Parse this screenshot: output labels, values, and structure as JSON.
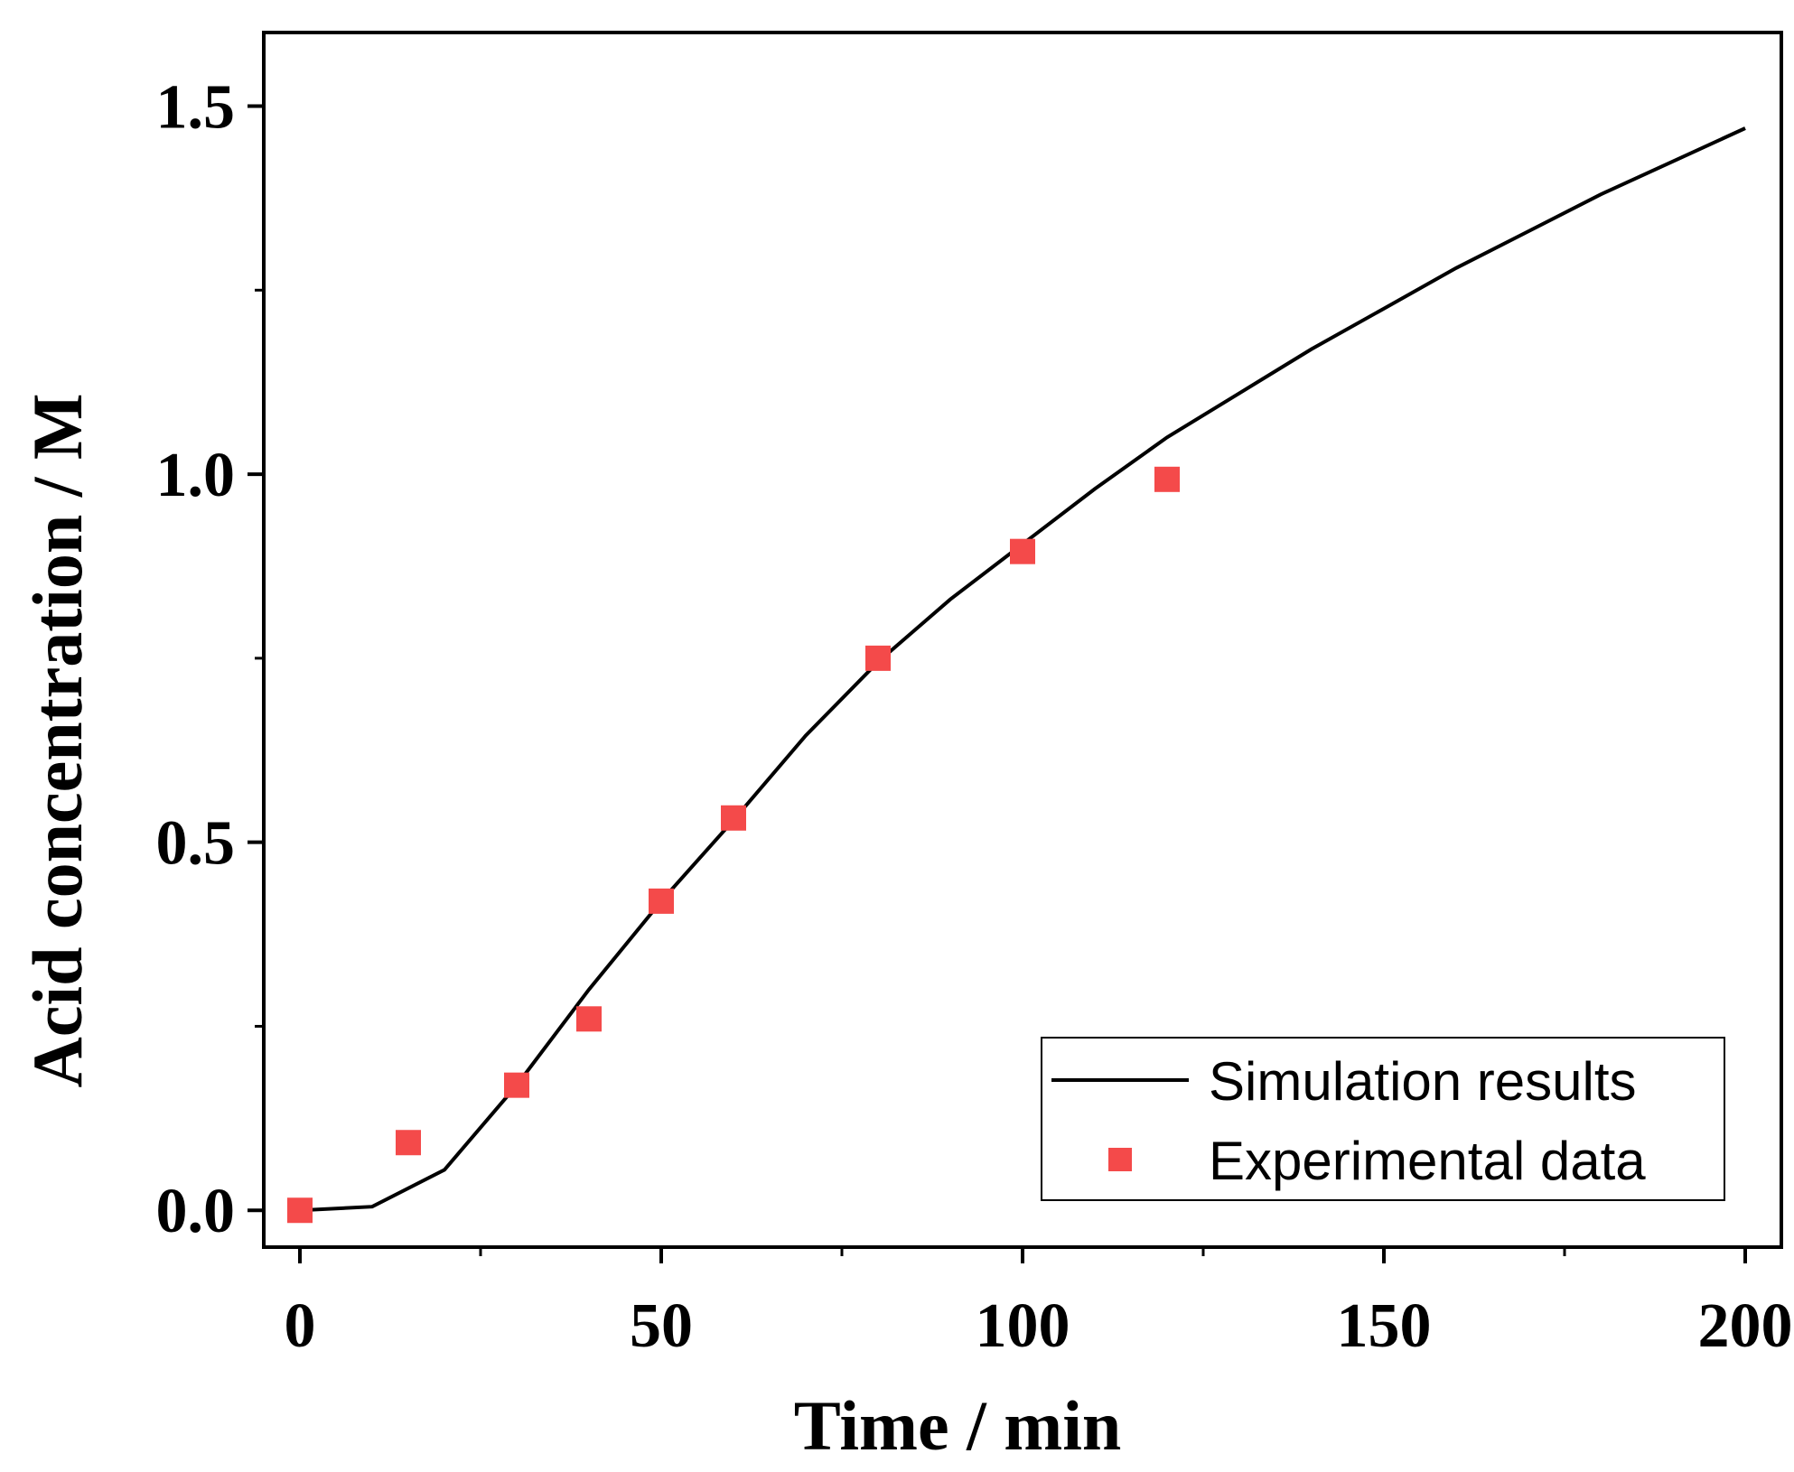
{
  "chart_data": {
    "type": "line",
    "xlabel": "Time / min",
    "ylabel": "Acid concentration / M",
    "xlim": [
      -5,
      205
    ],
    "ylim": [
      -0.05,
      1.6
    ],
    "x_ticks": [
      0,
      50,
      100,
      150,
      200
    ],
    "x_tick_labels": [
      "0",
      "50",
      "100",
      "150",
      "200"
    ],
    "x_minor_ticks": [
      25,
      75,
      125,
      175
    ],
    "y_ticks": [
      0.0,
      0.5,
      1.0,
      1.5
    ],
    "y_tick_labels": [
      "0.0",
      "0.5",
      "1.0",
      "1.5"
    ],
    "y_minor_ticks": [
      0.25,
      0.75,
      1.25
    ],
    "grid": false,
    "legend_position": "bottom-right",
    "series": [
      {
        "name": "Simulation results",
        "style": "line",
        "color": "#000000",
        "x": [
          0,
          10,
          20,
          30,
          40,
          50,
          60,
          70,
          80,
          90,
          100,
          110,
          120,
          130,
          140,
          150,
          160,
          170,
          180,
          190,
          200
        ],
        "y": [
          0.0,
          0.005,
          0.055,
          0.17,
          0.3,
          0.42,
          0.53,
          0.645,
          0.745,
          0.83,
          0.905,
          0.98,
          1.05,
          1.11,
          1.17,
          1.225,
          1.28,
          1.33,
          1.38,
          1.425,
          1.47
        ]
      },
      {
        "name": "Experimental data",
        "style": "scatter",
        "marker": "square",
        "color": "#f44a4a",
        "x": [
          0,
          15,
          30,
          40,
          50,
          60,
          80,
          100,
          120
        ],
        "y": [
          0.0,
          0.092,
          0.17,
          0.26,
          0.42,
          0.533,
          0.75,
          0.895,
          0.993
        ]
      }
    ]
  }
}
